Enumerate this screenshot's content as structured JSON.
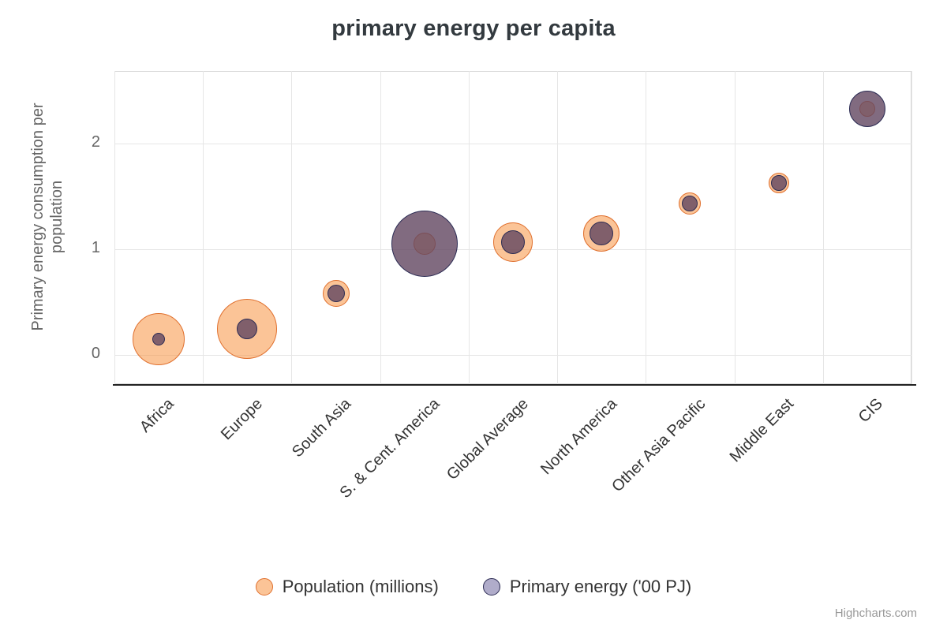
{
  "title": "primary energy per capita",
  "credits": "Highcharts.com",
  "legend": {
    "items": [
      {
        "label": "Population (millions)",
        "fill": "rgba(247,147,66,0.55)",
        "stroke": "#e0702e"
      },
      {
        "label": "Primary energy ('00 PJ)",
        "fill": "rgba(98,90,150,0.5)",
        "stroke": "#2c2c54"
      }
    ]
  },
  "chart_data": {
    "type": "bubble",
    "title": "primary energy per capita",
    "xlabel": "",
    "ylabel": "Primary energy consumption per population",
    "categories": [
      "Africa",
      "Europe",
      "South Asia",
      "S. & Cent. America",
      "Global Average",
      "North America",
      "Other Asia Pacific",
      "Middle East",
      "CIS"
    ],
    "y_ticks": [
      0,
      1,
      2
    ],
    "ylim": [
      -0.28,
      2.69
    ],
    "grid": true,
    "legend_position": "bottom",
    "series": [
      {
        "name": "Population (millions)",
        "fill": "rgba(247,147,66,0.55)",
        "stroke": "#e0702e",
        "points": [
          {
            "y": 0.15,
            "r": 33
          },
          {
            "y": 0.25,
            "r": 38
          },
          {
            "y": 0.58,
            "r": 17
          },
          {
            "y": 1.05,
            "r": 14
          },
          {
            "y": 1.07,
            "r": 25
          },
          {
            "y": 1.15,
            "r": 23
          },
          {
            "y": 1.43,
            "r": 14
          },
          {
            "y": 1.63,
            "r": 13
          },
          {
            "y": 2.33,
            "r": 10
          }
        ]
      },
      {
        "name": "Primary energy ('00 PJ)",
        "fill": "rgba(98,70,96,0.8)",
        "stroke": "#2c2c54",
        "points": [
          {
            "y": 0.15,
            "r": 8
          },
          {
            "y": 0.25,
            "r": 13
          },
          {
            "y": 0.58,
            "r": 11
          },
          {
            "y": 1.05,
            "r": 42
          },
          {
            "y": 1.07,
            "r": 15
          },
          {
            "y": 1.15,
            "r": 15
          },
          {
            "y": 1.43,
            "r": 10
          },
          {
            "y": 1.63,
            "r": 10
          },
          {
            "y": 2.33,
            "r": 23
          }
        ]
      }
    ]
  }
}
